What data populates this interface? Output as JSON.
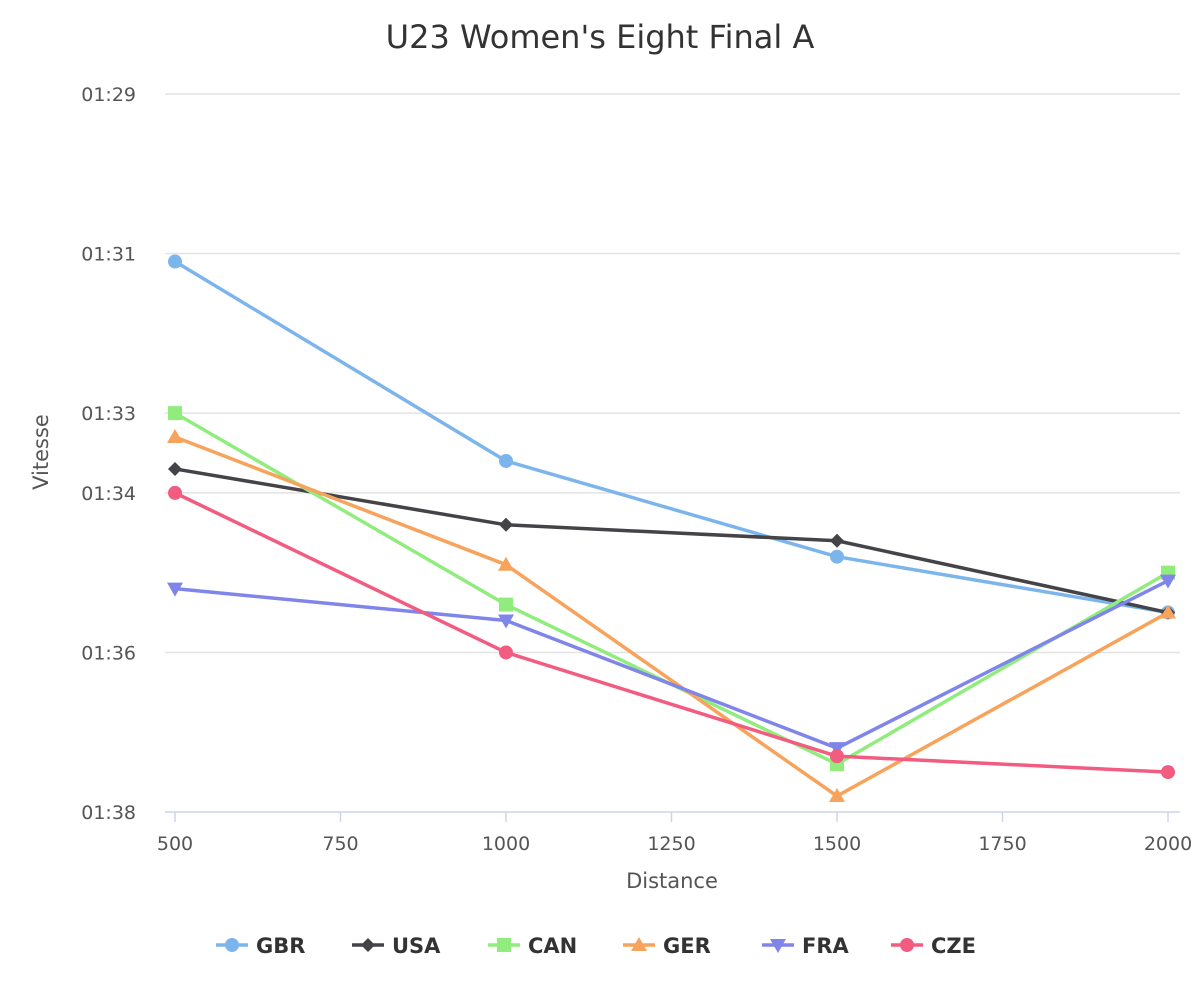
{
  "chart_data": {
    "type": "line",
    "title": "U23 Women's Eight Final A",
    "xlabel": "Distance",
    "ylabel": "Vitesse",
    "x": [
      500,
      1000,
      1500,
      2000
    ],
    "xlim": [
      500,
      2000
    ],
    "xticks": [
      500,
      750,
      1000,
      1250,
      1500,
      1750,
      2000
    ],
    "ylim_seconds": [
      89,
      98
    ],
    "reversed_y": true,
    "yticks": [
      {
        "seconds": 89,
        "label": "01:29"
      },
      {
        "seconds": 91,
        "label": "01:31"
      },
      {
        "seconds": 93,
        "label": "01:33"
      },
      {
        "seconds": 94,
        "label": "01:34"
      },
      {
        "seconds": 96,
        "label": "01:36"
      },
      {
        "seconds": 98,
        "label": "01:38"
      }
    ],
    "legend_position": "bottom",
    "series": [
      {
        "name": "GBR",
        "color": "#7cb5ec",
        "marker": "circle",
        "values": [
          91.1,
          93.6,
          94.8,
          95.5
        ]
      },
      {
        "name": "USA",
        "color": "#434348",
        "marker": "diamond",
        "values": [
          93.7,
          94.4,
          94.6,
          95.5
        ]
      },
      {
        "name": "CAN",
        "color": "#90ed7d",
        "marker": "square",
        "values": [
          93.0,
          95.4,
          97.4,
          95.0
        ]
      },
      {
        "name": "GER",
        "color": "#f7a35c",
        "marker": "triangle",
        "values": [
          93.3,
          94.9,
          97.8,
          95.5
        ]
      },
      {
        "name": "FRA",
        "color": "#8085e9",
        "marker": "triangle-down",
        "values": [
          95.2,
          95.6,
          97.2,
          95.1
        ]
      },
      {
        "name": "CZE",
        "color": "#f15c80",
        "marker": "circle",
        "values": [
          94.0,
          96.0,
          97.3,
          97.5
        ]
      }
    ]
  }
}
